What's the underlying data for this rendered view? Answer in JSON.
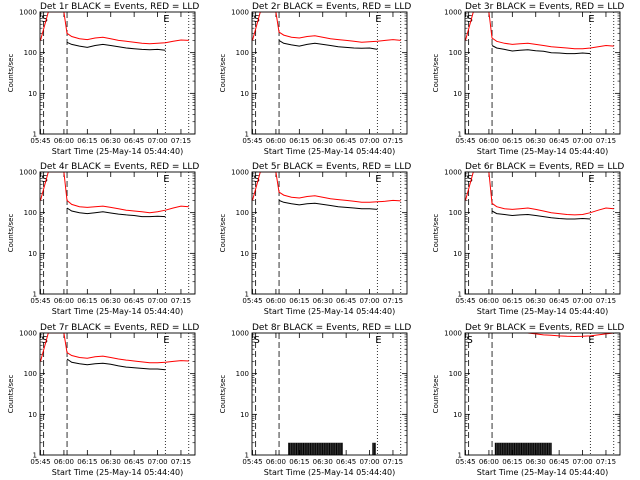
{
  "chart_data": [
    {
      "id": "det1",
      "type": "line",
      "title": "Det 1r BLACK = Events, RED = LLD",
      "xlabel": "Start Time (25-May-14 05:44:40)",
      "ylabel": "Counts/sec",
      "y_scale": "log",
      "ylim": [
        1,
        1000
      ],
      "y_ticks": [
        "1",
        "10",
        "100",
        "1000"
      ],
      "x_ticks": [
        "05:45",
        "06:00",
        "06:15",
        "06:30",
        "06:45",
        "07:00",
        "07:15"
      ],
      "markers": [
        {
          "label": "S",
          "at": "05:45"
        },
        {
          "label": "E",
          "at": "07:03"
        }
      ],
      "series": [
        {
          "color": "#000000",
          "x": [
            "06:02",
            "06:05",
            "06:10",
            "06:15",
            "06:20",
            "06:25",
            "06:30",
            "06:35",
            "06:40",
            "06:45",
            "06:50",
            "06:55",
            "07:00",
            "07:05"
          ],
          "values": [
            180,
            160,
            145,
            135,
            150,
            160,
            150,
            140,
            130,
            125,
            120,
            118,
            120,
            115
          ]
        },
        {
          "color": "#ff0000",
          "x": [
            "05:45",
            "05:50",
            "05:55",
            "06:00",
            "06:02",
            "06:05",
            "06:10",
            "06:15",
            "06:20",
            "06:25",
            "06:30",
            "06:35",
            "06:40",
            "06:45",
            "06:50",
            "06:55",
            "07:00",
            "07:05",
            "07:10",
            "07:15",
            "07:20"
          ],
          "values": [
            200,
            1200,
            1200,
            1200,
            300,
            250,
            220,
            210,
            230,
            240,
            220,
            200,
            190,
            180,
            170,
            165,
            170,
            175,
            190,
            205,
            200
          ]
        }
      ]
    },
    {
      "id": "det2",
      "type": "line",
      "title": "Det 2r BLACK = Events, RED = LLD",
      "xlabel": "Start Time (25-May-14 05:44:40)",
      "ylabel": "Counts/sec",
      "y_scale": "log",
      "ylim": [
        1,
        1000
      ],
      "y_ticks": [
        "1",
        "10",
        "100",
        "1000"
      ],
      "x_ticks": [
        "05:45",
        "06:00",
        "06:15",
        "06:30",
        "06:45",
        "07:00",
        "07:15"
      ],
      "markers": [
        {
          "label": "S",
          "at": "05:45"
        },
        {
          "label": "E",
          "at": "07:03"
        }
      ],
      "series": [
        {
          "color": "#000000",
          "x": [
            "06:02",
            "06:05",
            "06:10",
            "06:15",
            "06:20",
            "06:25",
            "06:30",
            "06:35",
            "06:40",
            "06:45",
            "06:50",
            "06:55",
            "07:00",
            "07:05"
          ],
          "values": [
            200,
            170,
            155,
            145,
            160,
            170,
            160,
            150,
            140,
            135,
            130,
            128,
            130,
            120
          ]
        },
        {
          "color": "#ff0000",
          "x": [
            "05:45",
            "05:50",
            "05:55",
            "06:00",
            "06:02",
            "06:05",
            "06:10",
            "06:15",
            "06:20",
            "06:25",
            "06:30",
            "06:35",
            "06:40",
            "06:45",
            "06:50",
            "06:55",
            "07:00",
            "07:05",
            "07:10",
            "07:15",
            "07:20"
          ],
          "values": [
            200,
            1200,
            1200,
            1200,
            320,
            270,
            240,
            230,
            250,
            260,
            240,
            220,
            210,
            200,
            190,
            180,
            185,
            190,
            200,
            210,
            200
          ]
        }
      ]
    },
    {
      "id": "det3",
      "type": "line",
      "title": "Det 3r BLACK = Events, RED = LLD",
      "xlabel": "Start Time (25-May-14 05:44:40)",
      "ylabel": "Counts/sec",
      "y_scale": "log",
      "ylim": [
        1,
        1000
      ],
      "y_ticks": [
        "1",
        "10",
        "100",
        "1000"
      ],
      "x_ticks": [
        "05:45",
        "06:00",
        "06:15",
        "06:30",
        "06:45",
        "07:00",
        "07:15"
      ],
      "markers": [
        {
          "label": "S",
          "at": "05:45"
        },
        {
          "label": "E",
          "at": "07:03"
        }
      ],
      "series": [
        {
          "color": "#000000",
          "x": [
            "06:02",
            "06:05",
            "06:10",
            "06:15",
            "06:20",
            "06:25",
            "06:30",
            "06:35",
            "06:40",
            "06:45",
            "06:50",
            "06:55",
            "07:00",
            "07:05"
          ],
          "values": [
            150,
            130,
            120,
            110,
            115,
            118,
            112,
            108,
            100,
            98,
            95,
            95,
            98,
            95
          ]
        },
        {
          "color": "#ff0000",
          "x": [
            "05:45",
            "05:50",
            "05:55",
            "06:00",
            "06:02",
            "06:05",
            "06:10",
            "06:15",
            "06:20",
            "06:25",
            "06:30",
            "06:35",
            "06:40",
            "06:45",
            "06:50",
            "06:55",
            "07:00",
            "07:05",
            "07:10",
            "07:15",
            "07:20"
          ],
          "values": [
            200,
            1200,
            1200,
            1200,
            230,
            190,
            170,
            160,
            165,
            170,
            160,
            150,
            140,
            135,
            130,
            125,
            125,
            130,
            140,
            150,
            145
          ]
        }
      ]
    },
    {
      "id": "det4",
      "type": "line",
      "title": "Det 4r BLACK = Events, RED = LLD",
      "xlabel": "Start Time (25-May-14 05:44:40)",
      "ylabel": "Counts/sec",
      "y_scale": "log",
      "ylim": [
        1,
        1000
      ],
      "y_ticks": [
        "1",
        "10",
        "100",
        "1000"
      ],
      "x_ticks": [
        "05:45",
        "06:00",
        "06:15",
        "06:30",
        "06:45",
        "07:00",
        "07:15"
      ],
      "markers": [
        {
          "label": "S",
          "at": "05:45"
        },
        {
          "label": "E",
          "at": "07:03"
        }
      ],
      "series": [
        {
          "color": "#000000",
          "x": [
            "06:02",
            "06:05",
            "06:10",
            "06:15",
            "06:20",
            "06:25",
            "06:30",
            "06:35",
            "06:40",
            "06:45",
            "06:50",
            "06:55",
            "07:00",
            "07:05"
          ],
          "values": [
            130,
            110,
            100,
            95,
            100,
            105,
            98,
            92,
            88,
            85,
            80,
            80,
            82,
            80
          ]
        },
        {
          "color": "#ff0000",
          "x": [
            "05:45",
            "05:50",
            "05:55",
            "06:00",
            "06:02",
            "06:05",
            "06:10",
            "06:15",
            "06:20",
            "06:25",
            "06:30",
            "06:35",
            "06:40",
            "06:45",
            "06:50",
            "06:55",
            "07:00",
            "07:05",
            "07:10",
            "07:15",
            "07:20"
          ],
          "values": [
            200,
            1200,
            1200,
            1200,
            200,
            160,
            140,
            135,
            140,
            145,
            135,
            125,
            115,
            110,
            105,
            100,
            105,
            115,
            130,
            145,
            140
          ]
        }
      ]
    },
    {
      "id": "det5",
      "type": "line",
      "title": "Det 5r BLACK = Events, RED = LLD",
      "xlabel": "Start Time (25-May-14 05:44:40)",
      "ylabel": "Counts/sec",
      "y_scale": "log",
      "ylim": [
        1,
        1000
      ],
      "y_ticks": [
        "1",
        "10",
        "100",
        "1000"
      ],
      "x_ticks": [
        "05:45",
        "06:00",
        "06:15",
        "06:30",
        "06:45",
        "07:00",
        "07:15"
      ],
      "markers": [
        {
          "label": "S",
          "at": "05:45"
        },
        {
          "label": "E",
          "at": "07:03"
        }
      ],
      "series": [
        {
          "color": "#000000",
          "x": [
            "06:02",
            "06:05",
            "06:10",
            "06:15",
            "06:20",
            "06:25",
            "06:30",
            "06:35",
            "06:40",
            "06:45",
            "06:50",
            "06:55",
            "07:00",
            "07:05"
          ],
          "values": [
            200,
            180,
            165,
            155,
            165,
            170,
            160,
            150,
            140,
            135,
            130,
            125,
            125,
            120
          ]
        },
        {
          "color": "#ff0000",
          "x": [
            "05:45",
            "05:50",
            "05:55",
            "06:00",
            "06:02",
            "06:05",
            "06:10",
            "06:15",
            "06:20",
            "06:25",
            "06:30",
            "06:35",
            "06:40",
            "06:45",
            "06:50",
            "06:55",
            "07:00",
            "07:05",
            "07:10",
            "07:15",
            "07:20"
          ],
          "values": [
            200,
            1200,
            1200,
            1200,
            320,
            270,
            240,
            230,
            250,
            260,
            240,
            220,
            210,
            200,
            190,
            180,
            180,
            185,
            190,
            200,
            195
          ]
        }
      ]
    },
    {
      "id": "det6",
      "type": "line",
      "title": "Det 6r BLACK = Events, RED = LLD",
      "xlabel": "Start Time (25-May-14 05:44:40)",
      "ylabel": "Counts/sec",
      "y_scale": "log",
      "ylim": [
        1,
        1000
      ],
      "y_ticks": [
        "1",
        "10",
        "100",
        "1000"
      ],
      "x_ticks": [
        "05:45",
        "06:00",
        "06:15",
        "06:30",
        "06:45",
        "07:00",
        "07:15"
      ],
      "markers": [
        {
          "label": "S",
          "at": "05:45"
        },
        {
          "label": "E",
          "at": "07:03"
        }
      ],
      "series": [
        {
          "color": "#000000",
          "x": [
            "06:02",
            "06:05",
            "06:10",
            "06:15",
            "06:20",
            "06:25",
            "06:30",
            "06:35",
            "06:40",
            "06:45",
            "06:50",
            "06:55",
            "07:00",
            "07:05"
          ],
          "values": [
            110,
            95,
            90,
            85,
            88,
            90,
            85,
            80,
            75,
            72,
            70,
            70,
            72,
            70
          ]
        },
        {
          "color": "#ff0000",
          "x": [
            "05:45",
            "05:50",
            "05:55",
            "06:00",
            "06:02",
            "06:05",
            "06:10",
            "06:15",
            "06:20",
            "06:25",
            "06:30",
            "06:35",
            "06:40",
            "06:45",
            "06:50",
            "06:55",
            "07:00",
            "07:05",
            "07:10",
            "07:15",
            "07:20"
          ],
          "values": [
            200,
            1200,
            1200,
            1200,
            170,
            140,
            125,
            120,
            125,
            130,
            120,
            110,
            100,
            95,
            90,
            88,
            90,
            100,
            115,
            130,
            125
          ]
        }
      ]
    },
    {
      "id": "det7",
      "type": "line",
      "title": "Det 7r BLACK = Events, RED = LLD",
      "xlabel": "Start Time (25-May-14 05:44:40)",
      "ylabel": "Counts/sec",
      "y_scale": "log",
      "ylim": [
        1,
        1000
      ],
      "y_ticks": [
        "1",
        "10",
        "100",
        "1000"
      ],
      "x_ticks": [
        "05:45",
        "06:00",
        "06:15",
        "06:30",
        "06:45",
        "07:00",
        "07:15"
      ],
      "markers": [
        {
          "label": "S",
          "at": "05:45"
        },
        {
          "label": "E",
          "at": "07:03"
        }
      ],
      "series": [
        {
          "color": "#000000",
          "x": [
            "06:02",
            "06:05",
            "06:10",
            "06:15",
            "06:20",
            "06:25",
            "06:30",
            "06:35",
            "06:40",
            "06:45",
            "06:50",
            "06:55",
            "07:00",
            "07:05"
          ],
          "values": [
            230,
            190,
            175,
            165,
            175,
            180,
            170,
            155,
            145,
            140,
            135,
            130,
            130,
            125
          ]
        },
        {
          "color": "#ff0000",
          "x": [
            "05:45",
            "05:50",
            "05:55",
            "06:00",
            "06:02",
            "06:05",
            "06:10",
            "06:15",
            "06:20",
            "06:25",
            "06:30",
            "06:35",
            "06:40",
            "06:45",
            "06:50",
            "06:55",
            "07:00",
            "07:05",
            "07:10",
            "07:15",
            "07:20"
          ],
          "values": [
            200,
            1200,
            1200,
            1200,
            330,
            280,
            250,
            240,
            260,
            270,
            250,
            230,
            215,
            205,
            195,
            185,
            185,
            190,
            200,
            210,
            205
          ]
        }
      ]
    },
    {
      "id": "det8",
      "type": "line",
      "title": "Det 8r BLACK = Events, RED = LLD",
      "xlabel": "Start Time (25-May-14 05:44:40)",
      "ylabel": "Counts/sec",
      "y_scale": "log",
      "ylim": [
        1,
        1000
      ],
      "y_ticks": [
        "1",
        "10",
        "100",
        "1000"
      ],
      "x_ticks": [
        "05:45",
        "06:00",
        "06:15",
        "06:30",
        "06:45",
        "07:00",
        "07:15"
      ],
      "markers": [
        {
          "label": "S",
          "at": "05:45"
        },
        {
          "label": "E",
          "at": "07:03"
        }
      ],
      "spikes": {
        "color": "#000000",
        "base": 1,
        "top": 2,
        "ranges": [
          [
            "06:08",
            "06:43"
          ],
          [
            "07:02",
            "07:04"
          ]
        ]
      },
      "series": []
    },
    {
      "id": "det9",
      "type": "line",
      "title": "Det 9r BLACK = Events, RED = LLD",
      "xlabel": "Start Time (25-May-14 05:44:40)",
      "ylabel": "Counts/sec",
      "y_scale": "log",
      "ylim": [
        1,
        1000
      ],
      "y_ticks": [
        "1",
        "10",
        "100",
        "1000"
      ],
      "x_ticks": [
        "05:45",
        "06:00",
        "06:15",
        "06:30",
        "06:45",
        "07:00",
        "07:15"
      ],
      "markers": [
        {
          "label": "S",
          "at": "05:45"
        },
        {
          "label": "E",
          "at": "07:03"
        }
      ],
      "spikes": {
        "color": "#000000",
        "base": 1,
        "top": 2,
        "ranges": [
          [
            "06:04",
            "06:40"
          ]
        ]
      },
      "series": [
        {
          "color": "#ff0000",
          "x": [
            "06:25",
            "06:30",
            "06:35",
            "06:40",
            "06:45",
            "06:50",
            "06:55",
            "07:00",
            "07:05",
            "07:10",
            "07:15",
            "07:20"
          ],
          "values": [
            1000,
            950,
            900,
            880,
            850,
            830,
            820,
            830,
            850,
            900,
            950,
            1000
          ]
        }
      ]
    }
  ]
}
